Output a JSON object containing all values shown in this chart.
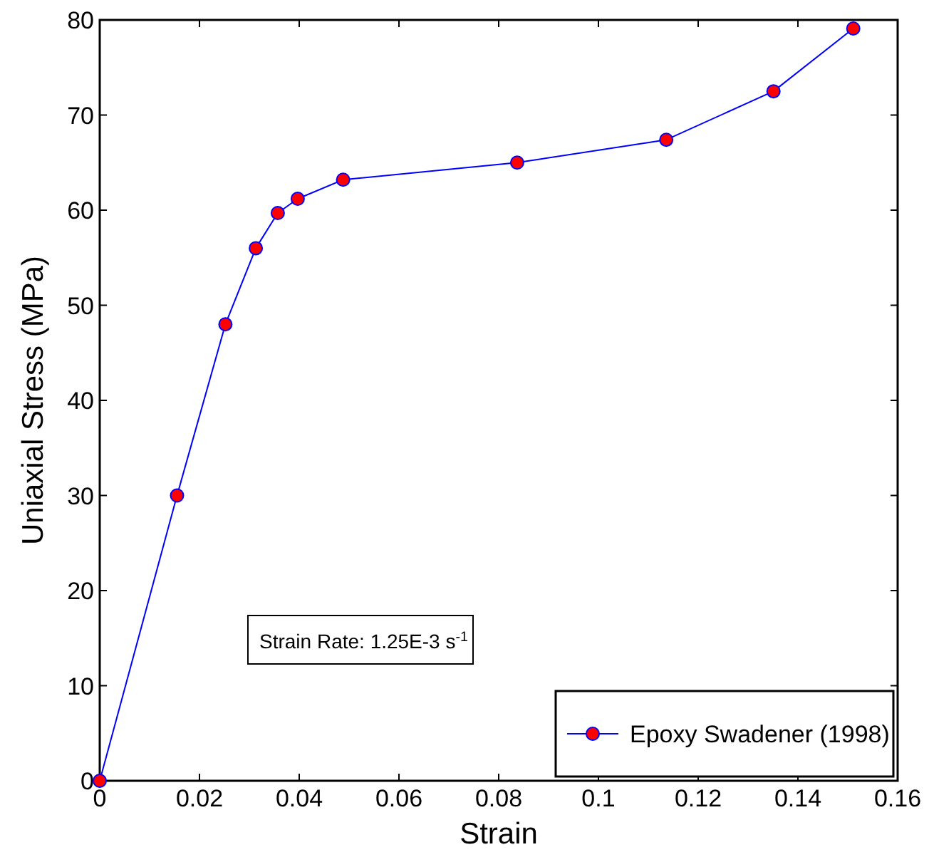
{
  "chart_data": {
    "type": "line",
    "xlabel": "Strain",
    "ylabel": "Uniaxial Stress (MPa)",
    "x": [
      0,
      0.0155,
      0.0252,
      0.0313,
      0.0357,
      0.0397,
      0.0488,
      0.0837,
      0.1136,
      0.1351,
      0.1511
    ],
    "series": [
      {
        "name": "Epoxy Swadener (1998)",
        "color": "#0000ff",
        "colors": [
          "#ff0000",
          "#ff0000",
          "#ff0000",
          "#ff0000",
          "#ff0000",
          "#ff0000",
          "#ff0000",
          "#ff0000",
          "#ff0000",
          "#ff0000",
          "#ff0000"
        ],
        "values": [
          0,
          30.0,
          48.0,
          56.0,
          59.7,
          61.2,
          63.2,
          65.0,
          67.4,
          72.5,
          79.1
        ]
      }
    ],
    "xlim": [
      0,
      0.16
    ],
    "xticks": [
      0,
      0.02,
      0.04,
      0.06,
      0.08,
      0.1,
      0.12,
      0.14,
      0.16
    ],
    "ylim": [
      0,
      80
    ],
    "yticks": [
      0,
      10,
      20,
      30,
      40,
      50,
      60,
      70,
      80
    ],
    "marker": "circle",
    "line_style": "solid",
    "grid": false,
    "legend": "bottom right",
    "annotations": [
      "Strain Rate: 1.25E-3 s$^{-1}$"
    ]
  }
}
